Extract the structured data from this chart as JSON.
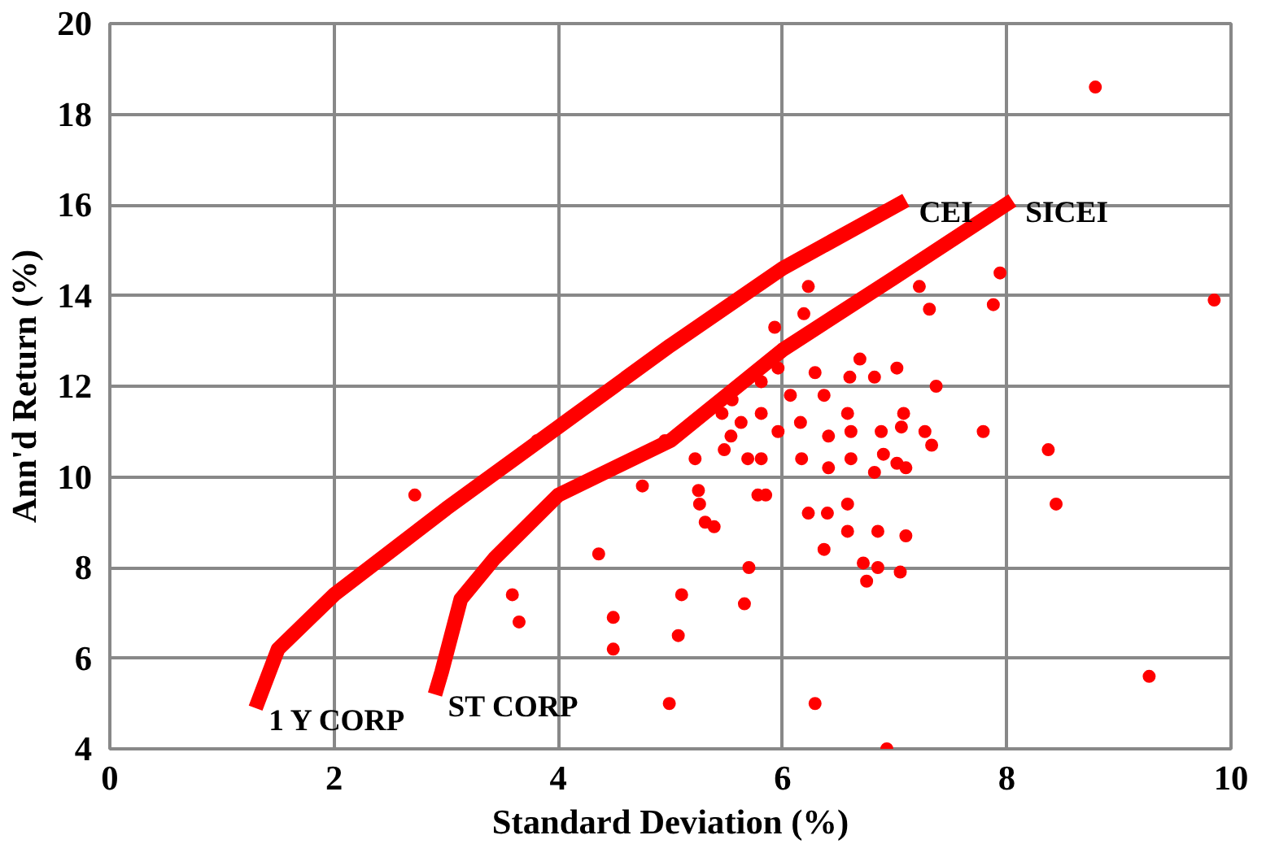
{
  "chart_data": {
    "type": "scatter",
    "xlabel": "Standard Deviation (%)",
    "ylabel": "Ann'd Return (%)",
    "xlim": [
      0,
      10
    ],
    "ylim": [
      4,
      20
    ],
    "xticks": [
      0,
      2,
      4,
      6,
      8,
      10
    ],
    "yticks": [
      4,
      6,
      8,
      10,
      12,
      14,
      16,
      18,
      20
    ],
    "grid": true,
    "series": [
      {
        "type": "line",
        "color": "#ff0000",
        "line_style": "solid",
        "marker": "none",
        "x": [
          1.3,
          1.5,
          2,
          3,
          4,
          5,
          6,
          7.1
        ],
        "values": [
          4.9,
          6.2,
          7.4,
          9.3,
          11.1,
          12.9,
          14.6,
          16.1
        ]
      },
      {
        "type": "line",
        "color": "#ff0000",
        "line_style": "solid",
        "marker": "none",
        "x": [
          2.9,
          2.96,
          3.13,
          3.43,
          4,
          5,
          5.5,
          6,
          7,
          8.05
        ],
        "values": [
          5.2,
          5.7,
          7.3,
          8.2,
          9.6,
          10.8,
          11.8,
          12.8,
          14.4,
          16.1
        ]
      },
      {
        "type": "scatter",
        "marker": "circle",
        "color": "#ff0000",
        "x": [
          6.23,
          6.19,
          5.93,
          5.81,
          5.96,
          6.29,
          6.07,
          6.37,
          5.55,
          5.46,
          5.63,
          5.81,
          5.96,
          6.16,
          6.41,
          5.54,
          5.48,
          4.95,
          5.22,
          5.69,
          5.81,
          6.17,
          6.41,
          4.75,
          5.25,
          5.26,
          5.78,
          5.85,
          6.23,
          6.4,
          5.31,
          5.39,
          6.37,
          4.36,
          5.7,
          3.59,
          5.1,
          5.66,
          3.65,
          4.49,
          5.07,
          4.49,
          4.99,
          6.29,
          8.79,
          7.94,
          7.22,
          7.31,
          7.88,
          9.85,
          6.69,
          7.02,
          6.6,
          6.82,
          7.37,
          6.58,
          7.08,
          7.06,
          6.61,
          6.88,
          7.27,
          7.33,
          7.79,
          6.9,
          6.61,
          7.02,
          7.1,
          6.82,
          8.37,
          8.44,
          6.58,
          6.58,
          6.85,
          7.1,
          6.72,
          6.85,
          7.05,
          6.75,
          9.27,
          6.93,
          2.72,
          3.81
        ],
        "values": [
          14.2,
          13.6,
          13.3,
          12.1,
          12.4,
          12.3,
          11.8,
          11.8,
          11.7,
          11.4,
          11.2,
          11.4,
          11.0,
          11.2,
          10.9,
          10.9,
          10.6,
          10.8,
          10.4,
          10.4,
          10.4,
          10.4,
          10.2,
          9.8,
          9.7,
          9.4,
          9.6,
          9.6,
          9.2,
          9.2,
          9.0,
          8.9,
          8.4,
          8.3,
          8.0,
          7.4,
          7.4,
          7.2,
          6.8,
          6.9,
          6.5,
          6.2,
          5.0,
          5.0,
          18.6,
          14.5,
          14.2,
          13.7,
          13.8,
          13.9,
          12.6,
          12.4,
          12.2,
          12.2,
          12.0,
          11.4,
          11.4,
          11.1,
          11.0,
          11.0,
          11.0,
          10.7,
          11.0,
          10.5,
          10.4,
          10.3,
          10.2,
          10.1,
          10.6,
          9.4,
          9.4,
          8.8,
          8.8,
          8.7,
          8.1,
          8.0,
          7.9,
          7.7,
          5.6,
          4.0,
          9.6,
          10.8
        ]
      }
    ],
    "annotations": [
      {
        "text": "1 Y CORP",
        "x": 1.3,
        "y": 4.9
      },
      {
        "text": "ST CORP",
        "x": 2.9,
        "y": 5.2
      },
      {
        "text": "CEI",
        "x": 7.1,
        "y": 16.1
      },
      {
        "text": "SICEI",
        "x": 8.05,
        "y": 16.1
      }
    ]
  }
}
